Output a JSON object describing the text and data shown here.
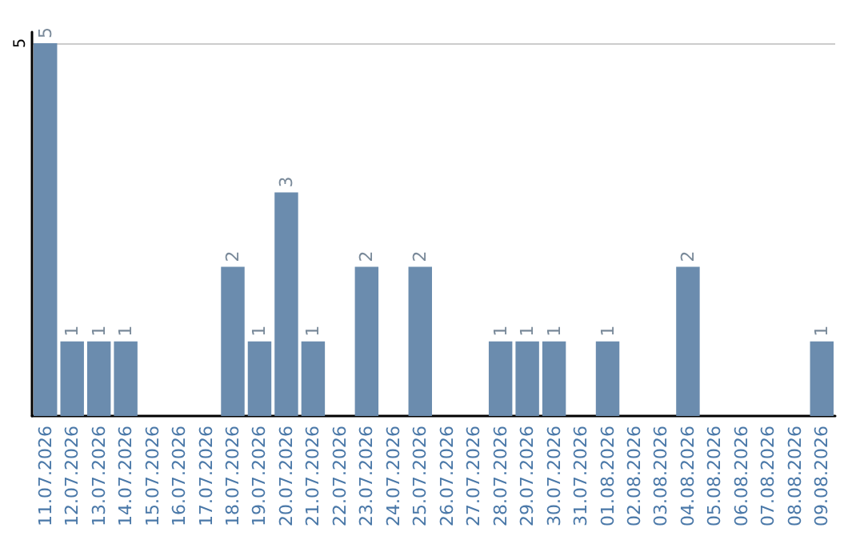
{
  "chart_data": {
    "type": "bar",
    "categories": [
      "11.07.2026",
      "12.07.2026",
      "13.07.2026",
      "14.07.2026",
      "15.07.2026",
      "16.07.2026",
      "17.07.2026",
      "18.07.2026",
      "19.07.2026",
      "20.07.2026",
      "21.07.2026",
      "22.07.2026",
      "23.07.2026",
      "24.07.2026",
      "25.07.2026",
      "26.07.2026",
      "27.07.2026",
      "28.07.2026",
      "29.07.2026",
      "30.07.2026",
      "31.07.2026",
      "01.08.2026",
      "02.08.2026",
      "03.08.2026",
      "04.08.2026",
      "05.08.2026",
      "06.08.2026",
      "07.08.2026",
      "08.08.2026",
      "09.08.2026"
    ],
    "values": [
      5,
      1,
      1,
      1,
      0,
      0,
      0,
      2,
      1,
      3,
      1,
      0,
      2,
      0,
      2,
      0,
      0,
      1,
      1,
      1,
      0,
      1,
      0,
      0,
      2,
      0,
      0,
      0,
      0,
      1
    ],
    "value_labels": [
      "5",
      "1",
      "1",
      "1",
      null,
      null,
      null,
      "2",
      "1",
      "3",
      "1",
      null,
      "2",
      null,
      "2",
      null,
      null,
      "1",
      "1",
      "1",
      null,
      "1",
      null,
      null,
      "2",
      null,
      null,
      null,
      null,
      "1"
    ],
    "color": "#6b8cae",
    "ylim": [
      0,
      5.15
    ],
    "yticks": [
      5
    ],
    "grid": "y"
  }
}
